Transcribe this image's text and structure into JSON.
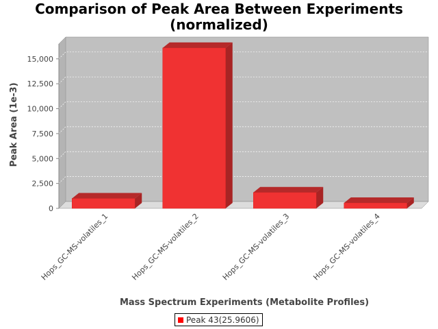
{
  "chart_data": {
    "type": "bar",
    "title_lines": [
      "Comparison of Peak Area Between Experiments",
      "(normalized)"
    ],
    "xlabel": "Mass Spectrum Experiments (Metabolite Profiles)",
    "ylabel": "Peak Area (1e-3)",
    "categories": [
      "Hops_GC-MS-volatiles_1",
      "Hops_GC-MS-volatiles_2",
      "Hops_GC-MS-volatiles_3",
      "Hops_GC-MS-volatiles_4"
    ],
    "series": [
      {
        "name": "Peak 43(25.9606)",
        "values": [
          1000,
          16100,
          1600,
          550
        ],
        "color": "#ff0000"
      }
    ],
    "y_ticks": [
      0,
      2500,
      5000,
      7500,
      10000,
      12500,
      15000
    ],
    "y_tick_labels": [
      "0",
      "2,500",
      "5,000",
      "7,500",
      "10,000",
      "12,500",
      "15,000"
    ],
    "ylim": [
      0,
      16500
    ],
    "grid": true,
    "legend_position": "bottom",
    "style": "3d-bar",
    "plot_background": "#c0c0c0"
  }
}
